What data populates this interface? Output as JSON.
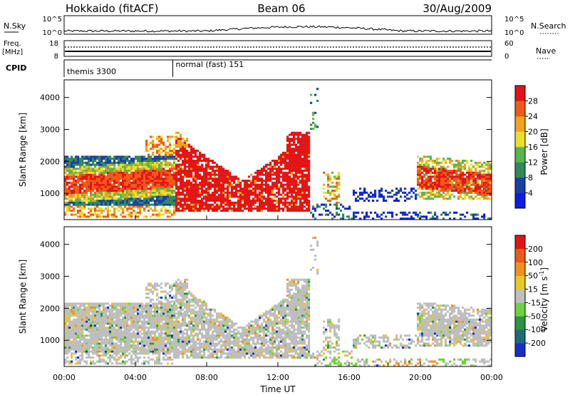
{
  "header": {
    "radar": "Hokkaido (fitACF)",
    "beam": "Beam 06",
    "date": "30/Aug/2009"
  },
  "strips": {
    "nsky_label": "N.Sky",
    "nsearch_label": "N.Search",
    "freq_label_1": "Freq.",
    "freq_label_2": "[MHz]",
    "nave_label": "Nave",
    "cpid_label": "CPID",
    "nsky_ticks": [
      "10^5",
      "10^0"
    ],
    "nsearch_ticks": [
      "10^5",
      "10^0"
    ],
    "freq_ticks": [
      "18",
      "8"
    ],
    "nave_ticks": [
      "60",
      "0"
    ],
    "cpid_segments": [
      {
        "start_hour": 0,
        "label": "themis 3300"
      },
      {
        "start_hour": 6.1,
        "label": "normal (fast) 151"
      }
    ]
  },
  "chart_data": [
    {
      "type": "heatmap",
      "name": "power",
      "ylabel": "Slant Range [km]",
      "yticks": [
        "1000",
        "2000",
        "3000",
        "4000"
      ],
      "ylim": [
        180,
        4550
      ],
      "xlim": [
        0,
        24
      ],
      "colorbar": {
        "label": "Power [dB]",
        "ticks": [
          "4",
          "8",
          "12",
          "16",
          "20",
          "24",
          "28"
        ],
        "colors": [
          "#0a1ce6",
          "#1a3fa8",
          "#2f8a57",
          "#57b54f",
          "#e8e02a",
          "#f2a21c",
          "#ef5a17",
          "#e41414"
        ]
      }
    },
    {
      "type": "heatmap",
      "name": "velocity",
      "ylabel": "Slant Range [km]",
      "yticks": [
        "1000",
        "2000",
        "3000",
        "4000"
      ],
      "ylim": [
        180,
        4550
      ],
      "xlim": [
        0,
        24
      ],
      "xlabel": "Time UT",
      "xticks": [
        "00:00",
        "04:00",
        "08:00",
        "12:00",
        "16:00",
        "20:00",
        "00:00"
      ],
      "colorbar": {
        "label": "Velocity [m s",
        "label_sup": "-1",
        "label_end": "]",
        "ticks": [
          "200",
          "100",
          "50",
          "15",
          "-15",
          "-50",
          "-100",
          "-200"
        ],
        "colors": [
          "#1530c8",
          "#1e6a7a",
          "#2e9440",
          "#6ed23a",
          "#bebebe",
          "#e8c828",
          "#f0921a",
          "#ef5a17",
          "#e41414"
        ]
      }
    }
  ]
}
